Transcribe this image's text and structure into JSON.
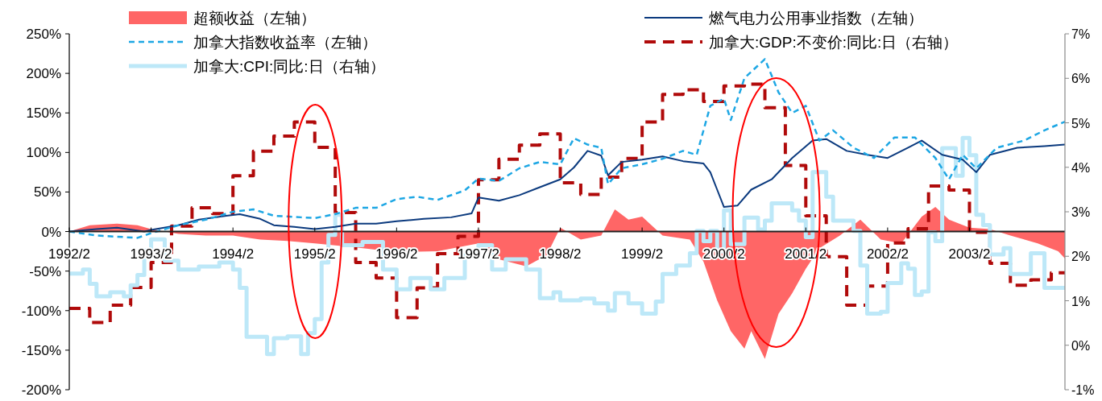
{
  "chart_data": {
    "type": "line",
    "legend": "top",
    "xlim": [
      "1992-02",
      "2004-04"
    ],
    "xticks": [
      {
        "value": "1992-02",
        "label": "1992/2"
      },
      {
        "value": "1993-02",
        "label": "1993/2"
      },
      {
        "value": "1994-02",
        "label": "1994/2"
      },
      {
        "value": "1995-02",
        "label": "1995/2"
      },
      {
        "value": "1996-02",
        "label": "1996/2"
      },
      {
        "value": "1997-02",
        "label": "1997/2"
      },
      {
        "value": "1998-02",
        "label": "1998/2"
      },
      {
        "value": "1999-02",
        "label": "1999/2"
      },
      {
        "value": "2000-02",
        "label": "2000/2"
      },
      {
        "value": "2001-02",
        "label": "2001/2"
      },
      {
        "value": "2002-02",
        "label": "2002/2"
      },
      {
        "value": "2003-02",
        "label": "2003/2"
      }
    ],
    "ylim": [
      -200,
      250
    ],
    "yticks": [
      {
        "value": -200,
        "label": "-200%"
      },
      {
        "value": -150,
        "label": "-150%"
      },
      {
        "value": -100,
        "label": "-100%"
      },
      {
        "value": -50,
        "label": "-50%"
      },
      {
        "value": 0,
        "label": "0%"
      },
      {
        "value": 50,
        "label": "50%"
      },
      {
        "value": 100,
        "label": "100%"
      },
      {
        "value": 150,
        "label": "150%"
      },
      {
        "value": 200,
        "label": "200%"
      },
      {
        "value": 250,
        "label": "250%"
      }
    ],
    "y2lim": [
      -1,
      7
    ],
    "y2ticks": [
      {
        "value": -1,
        "label": "-1%"
      },
      {
        "value": 0,
        "label": "0%"
      },
      {
        "value": 1,
        "label": "1%"
      },
      {
        "value": 2,
        "label": "2%"
      },
      {
        "value": 3,
        "label": "3%"
      },
      {
        "value": 4,
        "label": "4%"
      },
      {
        "value": 5,
        "label": "5%"
      },
      {
        "value": 6,
        "label": "6%"
      },
      {
        "value": 7,
        "label": "7%"
      }
    ],
    "series": [
      {
        "name": "超额收益（左轴）",
        "type": "area",
        "color": "#ff6666",
        "x": [
          "1992-02",
          "1992-05",
          "1992-09",
          "1992-12",
          "1993-02",
          "1993-06",
          "1993-10",
          "1994-02",
          "1994-06",
          "1994-10",
          "1995-02",
          "1995-08",
          "1996-02",
          "1996-08",
          "1997-02",
          "1997-05",
          "1997-09",
          "1997-12",
          "1998-02",
          "1998-05",
          "1998-08",
          "1998-10",
          "1998-12",
          "1999-02",
          "1999-05",
          "1999-09",
          "1999-11",
          "2000-01",
          "2000-03",
          "2000-05",
          "2000-06",
          "2000-08",
          "2000-10",
          "2000-12",
          "2001-02",
          "2001-04",
          "2001-07",
          "2001-10",
          "2002-01",
          "2002-04",
          "2002-07",
          "2002-09",
          "2002-11",
          "2003-02",
          "2003-05",
          "2003-08",
          "2003-12",
          "2004-03",
          "2004-04"
        ],
        "values": [
          0,
          8,
          10,
          8,
          3,
          -3,
          -5,
          -5,
          -10,
          -12,
          -15,
          -20,
          -26,
          -25,
          -15,
          -35,
          -44,
          -30,
          5,
          -10,
          -5,
          28,
          15,
          19,
          -5,
          -10,
          -38,
          -87,
          -126,
          -148,
          -126,
          -161,
          -104,
          -78,
          -47,
          -21,
          -5,
          15,
          -10,
          -15,
          19,
          31,
          15,
          5,
          3,
          -5,
          -15,
          -25,
          -34
        ]
      },
      {
        "name": "燃气电力公用事业指数（左轴）",
        "color": "#0b3a7e",
        "line_style": "solid",
        "x": [
          "1992-02",
          "1992-06",
          "1992-09",
          "1993-01",
          "1993-02",
          "1993-06",
          "1993-09",
          "1994-01",
          "1994-03",
          "1994-06",
          "1994-08",
          "1994-11",
          "1995-02",
          "1995-05",
          "1995-08",
          "1995-11",
          "1996-02",
          "1996-06",
          "1996-10",
          "1997-01",
          "1997-02",
          "1997-05",
          "1997-08",
          "1997-11",
          "1998-02",
          "1998-04",
          "1998-06",
          "1998-08",
          "1998-09",
          "1998-11",
          "1999-02",
          "1999-05",
          "1999-08",
          "1999-11",
          "1999-12",
          "2000-01",
          "2000-02",
          "2000-04",
          "2000-06",
          "2000-09",
          "2000-12",
          "2001-03",
          "2001-05",
          "2001-08",
          "2001-11",
          "2002-02",
          "2002-05",
          "2002-07",
          "2002-10",
          "2003-01",
          "2003-03",
          "2003-05",
          "2003-09",
          "2004-01",
          "2004-04"
        ],
        "values": [
          0,
          3,
          5,
          0,
          2,
          8,
          15,
          20,
          22,
          16,
          8,
          6,
          3,
          6,
          10,
          10,
          13,
          16,
          18,
          23,
          43,
          39,
          46,
          56,
          66,
          81,
          102,
          96,
          71,
          88,
          91,
          95,
          89,
          86,
          75,
          53,
          31,
          33,
          53,
          66,
          93,
          115,
          117,
          102,
          97,
          93,
          106,
          115,
          97,
          91,
          75,
          97,
          106,
          108,
          110
        ]
      },
      {
        "name": "加拿大指数收益率（左轴）",
        "color": "#1ea7e4",
        "line_style": "dashed",
        "x": [
          "1992-02",
          "1992-06",
          "1992-12",
          "1993-02",
          "1993-06",
          "1993-10",
          "1994-02",
          "1994-05",
          "1994-08",
          "1994-12",
          "1995-02",
          "1995-05",
          "1995-08",
          "1995-11",
          "1996-02",
          "1996-05",
          "1996-08",
          "1996-12",
          "1997-02",
          "1997-05",
          "1997-08",
          "1997-11",
          "1998-02",
          "1998-04",
          "1998-06",
          "1998-08",
          "1998-09",
          "1998-11",
          "1999-02",
          "1999-05",
          "1999-08",
          "1999-10",
          "1999-12",
          "2000-02",
          "2000-03",
          "2000-05",
          "2000-08",
          "2000-10",
          "2000-12",
          "2001-02",
          "2001-04",
          "2001-06",
          "2001-09",
          "2001-12",
          "2002-03",
          "2002-06",
          "2002-09",
          "2002-11",
          "2003-01",
          "2003-03",
          "2003-06",
          "2003-10",
          "2004-01",
          "2004-04"
        ],
        "values": [
          0,
          -5,
          -8,
          -2,
          8,
          15,
          25,
          28,
          20,
          18,
          17,
          22,
          30,
          30,
          41,
          44,
          40,
          52,
          67,
          64,
          80,
          88,
          85,
          118,
          110,
          106,
          60,
          80,
          85,
          92,
          102,
          97,
          159,
          168,
          141,
          194,
          218,
          176,
          150,
          159,
          115,
          128,
          106,
          93,
          119,
          119,
          93,
          66,
          97,
          80,
          106,
          115,
          128,
          139
        ]
      },
      {
        "name": "加拿大:GDP:不变价:同比:日（右轴）",
        "type": "step",
        "axis": "y2",
        "color": "#b00a0a",
        "line_style": "dashed",
        "x": [
          "1992-02",
          "1992-05",
          "1992-08",
          "1992-11",
          "1993-02",
          "1993-05",
          "1993-08",
          "1993-11",
          "1994-02",
          "1994-05",
          "1994-08",
          "1994-11",
          "1995-02",
          "1995-05",
          "1995-08",
          "1995-11",
          "1996-02",
          "1996-05",
          "1996-08",
          "1996-11",
          "1997-02",
          "1997-05",
          "1997-08",
          "1997-11",
          "1998-02",
          "1998-05",
          "1998-08",
          "1998-11",
          "1999-02",
          "1999-05",
          "1999-08",
          "1999-11",
          "2000-02",
          "2000-05",
          "2000-08",
          "2000-11",
          "2001-02",
          "2001-05",
          "2001-08",
          "2001-11",
          "2002-02",
          "2002-05",
          "2002-08",
          "2002-11",
          "2003-02",
          "2003-05",
          "2003-08",
          "2003-11",
          "2004-02",
          "2004-04"
        ],
        "values": [
          0.83,
          0.51,
          0.9,
          1.3,
          1.86,
          2.68,
          3.09,
          2.96,
          3.81,
          4.36,
          4.7,
          5.02,
          4.45,
          2.98,
          1.86,
          1.51,
          0.62,
          1.29,
          2.06,
          2.45,
          3.72,
          4.18,
          4.5,
          4.75,
          3.65,
          3.39,
          3.78,
          4.2,
          5.02,
          5.64,
          5.74,
          5.48,
          5.83,
          5.87,
          5.34,
          4.04,
          2.91,
          1.99,
          0.9,
          1.33,
          2.3,
          2.62,
          3.58,
          3.49,
          2.54,
          1.84,
          1.35,
          1.47,
          1.63,
          1.63
        ]
      },
      {
        "name": "加拿大:CPI:同比:日（右轴）",
        "type": "step",
        "axis": "y2",
        "color": "#bde8f8",
        "line_style": "solid",
        "x": [
          "1992-02",
          "1992-04",
          "1992-05",
          "1992-06",
          "1992-08",
          "1992-10",
          "1992-11",
          "1992-12",
          "1993-01",
          "1993-02",
          "1993-04",
          "1993-06",
          "1993-09",
          "1993-12",
          "1994-02",
          "1994-03",
          "1994-04",
          "1994-07",
          "1994-08",
          "1994-10",
          "1994-12",
          "1995-01",
          "1995-02",
          "1995-03",
          "1995-04",
          "1995-05",
          "1995-06",
          "1995-09",
          "1995-12",
          "1996-02",
          "1996-04",
          "1996-07",
          "1996-09",
          "1996-12",
          "1997-02",
          "1997-04",
          "1997-06",
          "1997-09",
          "1997-11",
          "1998-01",
          "1998-02",
          "1998-05",
          "1998-07",
          "1998-09",
          "1998-10",
          "1998-12",
          "1999-02",
          "1999-04",
          "1999-05",
          "1999-07",
          "1999-09",
          "1999-10",
          "1999-11",
          "1999-12",
          "2000-01",
          "2000-02",
          "2000-03",
          "2000-05",
          "2000-07",
          "2000-08",
          "2000-09",
          "2000-12",
          "2001-01",
          "2001-02",
          "2001-03",
          "2001-05",
          "2001-06",
          "2001-09",
          "2001-10",
          "2001-11",
          "2002-01",
          "2002-02",
          "2002-04",
          "2002-05",
          "2002-06",
          "2002-07",
          "2002-08",
          "2002-09",
          "2002-10",
          "2002-12",
          "2003-01",
          "2003-02",
          "2003-03",
          "2003-04",
          "2003-05",
          "2003-07",
          "2003-08",
          "2003-10",
          "2003-11",
          "2004-01",
          "2004-04"
        ],
        "values": [
          1.61,
          1.7,
          1.38,
          1.1,
          1.19,
          1.1,
          1.35,
          1.58,
          2.13,
          2.38,
          1.9,
          1.7,
          1.77,
          1.86,
          1.7,
          1.29,
          0.19,
          -0.2,
          0.16,
          0.2,
          -0.2,
          0.27,
          0.59,
          1.86,
          2.48,
          2.93,
          2.25,
          2.32,
          1.7,
          1.26,
          1.51,
          1.26,
          1.51,
          2.02,
          2.25,
          1.7,
          1.93,
          1.7,
          1.06,
          1.19,
          1.01,
          1.05,
          0.94,
          0.78,
          1.17,
          0.94,
          0.71,
          0.98,
          1.6,
          1.79,
          2.07,
          2.57,
          2.34,
          2.57,
          2.11,
          3.03,
          2.27,
          2.87,
          2.6,
          2.8,
          3.19,
          3.03,
          2.8,
          2.43,
          3.89,
          3.34,
          2.8,
          2.57,
          1.79,
          0.71,
          0.75,
          1.4,
          1.84,
          1.72,
          1.13,
          1.21,
          2.54,
          2.34,
          4.43,
          3.81,
          4.66,
          4.27,
          2.93,
          2.7,
          2.04,
          2.18,
          1.6,
          1.6,
          2.07,
          1.29,
          1.29
        ]
      }
    ]
  }
}
